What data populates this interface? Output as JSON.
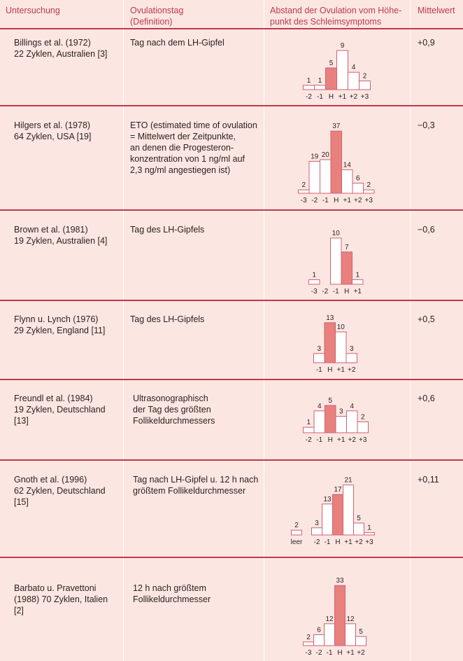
{
  "header": {
    "col1": "Untersuchung",
    "col2": "Ovulationstag\n(Definition)",
    "col3": "Abstand der Ovulation vom Höhe-\npunkt des Schleimsymptoms",
    "col4": "Mittelwert"
  },
  "colors": {
    "accent": "#c0394b",
    "highlight_bar": "#e8817d",
    "bar": "#ffffff",
    "background": "#fbe6e2"
  },
  "rows": [
    {
      "study": "Billings et al. (1972)\n22 Zyklen, Australien [3]",
      "definition": "Tag nach dem LH-Gipfel",
      "mean": "+0,9",
      "chart_data": {
        "type": "bar",
        "categories": [
          "-2",
          "-1",
          "H",
          "+1",
          "+2",
          "+3"
        ],
        "values": [
          1,
          1,
          5,
          9,
          4,
          2
        ],
        "highlight": "H"
      }
    },
    {
      "study": "Hilgers et al. (1978)\n64 Zyklen, USA [19]",
      "definition": "ETO (estimated time of ovulation\n= Mittelwert der Zeitpunkte,\nan denen die Progesteron-\nkonzentration von 1 ng/ml auf\n2,3 ng/ml angestiegen ist)",
      "mean": "−0,3",
      "chart_data": {
        "type": "bar",
        "categories": [
          "-3",
          "-2",
          "-1",
          "H",
          "+1",
          "+2",
          "+3"
        ],
        "values": [
          2,
          19,
          20,
          37,
          14,
          6,
          2
        ],
        "highlight": "H"
      }
    },
    {
      "study": "Brown et al. (1981)\n19 Zyklen, Australien [4]",
      "definition": "Tag des LH-Gipfels",
      "mean": "−0,6",
      "chart_data": {
        "type": "bar",
        "categories": [
          "-3",
          "-2",
          "-1",
          "H",
          "+1"
        ],
        "values": [
          1,
          0,
          10,
          7,
          1
        ],
        "highlight": "H"
      }
    },
    {
      "study": "Flynn u. Lynch (1976)\n29 Zyklen, England [11]",
      "definition": "Tag des LH-Gipfels",
      "mean": "+0,5",
      "chart_data": {
        "type": "bar",
        "categories": [
          "-1",
          "H",
          "+1",
          "+2"
        ],
        "values": [
          3,
          13,
          10,
          3
        ],
        "highlight": "H"
      }
    },
    {
      "study": "Freundl et al. (1984)\n19 Zyklen, Deutschland\n[13]",
      "definition": "Ultrasonographisch\nder Tag des größten\nFollikeldurchmessers",
      "mean": "+0,6",
      "chart_data": {
        "type": "bar",
        "categories": [
          "-2",
          "-1",
          "H",
          "+1",
          "+2",
          "+3"
        ],
        "values": [
          1,
          4,
          5,
          3,
          4,
          2
        ],
        "highlight": "H"
      }
    },
    {
      "study": "Gnoth et al. (1996)\n62 Zyklen, Deutschland\n[15]",
      "definition": "Tag nach LH-Gipfel u. 12 h nach\ngrößtem Follikeldurchmesser",
      "mean": "+0,11",
      "chart_data": {
        "type": "bar",
        "categories": [
          "leer",
          "-2",
          "-1",
          "H",
          "+1",
          "+2",
          "+3"
        ],
        "values": [
          2,
          3,
          13,
          17,
          21,
          5,
          1
        ],
        "highlight": "H"
      }
    },
    {
      "study": "Barbato u. Pravettoni\n(1988) 70 Zyklen, Italien\n[2]",
      "definition": "12 h nach größtem\nFollikeldurchmesser",
      "mean": "",
      "chart_data": {
        "type": "bar",
        "categories": [
          "-3",
          "-2",
          "-1",
          "H",
          "+1",
          "+2"
        ],
        "values": [
          2,
          6,
          12,
          33,
          12,
          5
        ],
        "highlight": "H"
      }
    }
  ]
}
